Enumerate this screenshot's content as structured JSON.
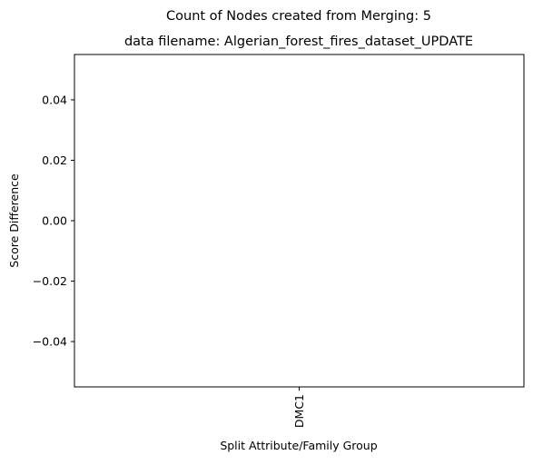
{
  "chart_data": {
    "type": "bar",
    "suptitle": "Count of Nodes created from Merging: 5",
    "title": "data filename: Algerian_forest_fires_dataset_UPDATE",
    "xlabel": "Split Attribute/Family Group",
    "ylabel": "Score Difference",
    "categories": [
      "DMC1"
    ],
    "values": [
      0
    ],
    "ylim": [
      -0.055,
      0.055
    ],
    "yticks": [
      -0.04,
      -0.02,
      0.0,
      0.02,
      0.04
    ],
    "ytick_labels": [
      "−0.04",
      "−0.02",
      "0.00",
      "0.02",
      "0.04"
    ],
    "grid": false,
    "legend": "none"
  }
}
